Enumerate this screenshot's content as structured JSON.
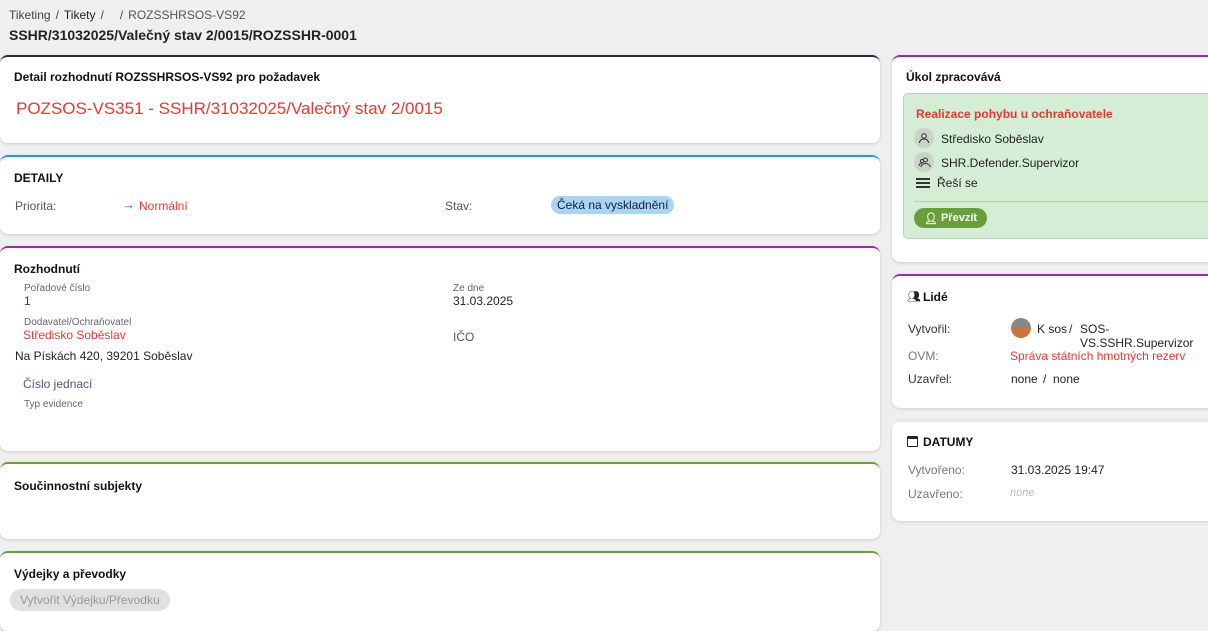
{
  "breadcrumb": {
    "items": [
      "Tiketing",
      "Tikety",
      "",
      "ROZSSHRSOS-VS92"
    ]
  },
  "page_title": "SSHR/31032025/Valečný stav 2/0015/ROZSSHR-0001",
  "detail_card": {
    "title": "Detail rozhodnutí ROZSSHRSOS-VS92 pro požadavek",
    "link": "POZSOS-VS351 - SSHR/31032025/Valečný stav 2/0015"
  },
  "details": {
    "title": "DETAILY",
    "priority_label": "Priorita:",
    "priority_icon": "arrow-right-icon",
    "priority_value": "Normální",
    "status_label": "Stav:",
    "status_value": "Čeká na vyskladnění"
  },
  "decision": {
    "title": "Rozhodnutí",
    "order_label": "Pořadové číslo",
    "order_value": "1",
    "date_label": "Ze dne",
    "date_value": "31.03.2025",
    "supplier_label": "Dodavatel/Ochraňovatel",
    "supplier_value": "Středisko Soběslav",
    "address": "Na Pískách 420, 39201 Soběslav",
    "ico_label": "IČO",
    "ref_label": "Číslo jednací",
    "evidence_label": "Typ evidence"
  },
  "cooperating": {
    "title": "Součinnostní subjekty"
  },
  "issues": {
    "title": "Výdejky a převodky",
    "create_button": "Vytvořit Výdejku/Převodku"
  },
  "task": {
    "title": "Úkol zpracovává",
    "step": "Realizace pohybu u ochraňovatele",
    "assignee": "Středisko Soběslav",
    "role": "SHR.Defender.Supervizor",
    "state": "Řeší se",
    "take_button": "Převzít"
  },
  "people": {
    "title": "Lidé",
    "created_by_label": "Vytvořil:",
    "created_by_name": "K sos",
    "created_by_role": "SOS-VS.SSHR.Supervizor",
    "ovm_label": "OVM:",
    "ovm_value": "Správa státních hmotných rezerv",
    "closed_by_label": "Uzavřel:",
    "closed_by_name": "none",
    "closed_by_role": "none",
    "separator": "/"
  },
  "dates": {
    "title": "DATUMY",
    "created_label": "Vytvořeno:",
    "created_value": "31.03.2025 19:47",
    "closed_label": "Uzavřeno:",
    "closed_value": "none"
  },
  "colors": {
    "accent_red": "#e53935",
    "blue": "#2196f3",
    "purple": "#9c27b0",
    "green": "#689f38",
    "task_bg": "#d5ecd5",
    "status_badge": "#a9d4f5"
  }
}
